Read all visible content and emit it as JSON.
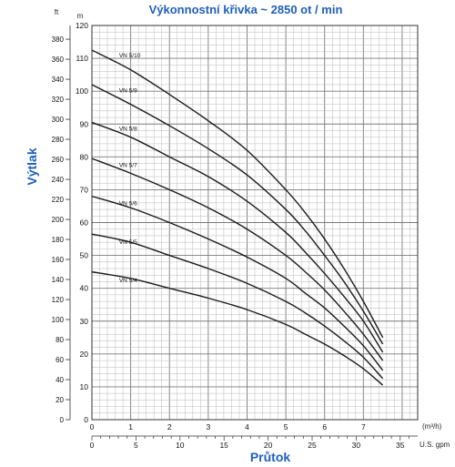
{
  "colors": {
    "accent": "#1f5fbf",
    "grid": "#b9b9b9",
    "grid_major": "#7a7a7a",
    "curve": "#1a1a1a"
  },
  "chart_data": {
    "type": "line",
    "title": "Výkonnostní křivka ~ 2850 ot / min",
    "xlabel": "Průtok",
    "ylabel": "Výtlak",
    "x_unit_primary": "(m³/h)",
    "x_unit_secondary": "U.S. gpm",
    "y_unit_primary": "m",
    "y_unit_secondary": "ft",
    "xlim": [
      0,
      8.4
    ],
    "ylim": [
      0,
      120
    ],
    "grid": true,
    "x_ticks_primary": [
      "0",
      "1",
      "2",
      "3",
      "4",
      "5",
      "6",
      "7"
    ],
    "x_ticks_secondary": [
      "0",
      "5",
      "10",
      "15",
      "20",
      "25",
      "30",
      "35"
    ],
    "y_ticks_primary": [
      "0",
      "10",
      "20",
      "30",
      "40",
      "50",
      "60",
      "70",
      "80",
      "90",
      "100",
      "110",
      "120"
    ],
    "y_ticks_secondary": [
      "0",
      "20",
      "40",
      "60",
      "80",
      "100",
      "120",
      "140",
      "160",
      "180",
      "200",
      "220",
      "240",
      "260",
      "280",
      "300",
      "320",
      "340",
      "360",
      "380"
    ],
    "series": [
      {
        "name": "VN 5/10",
        "x": [
          0,
          1,
          2,
          3,
          4,
          5,
          5.5,
          6,
          6.5,
          7,
          7.5
        ],
        "y": [
          112.5,
          106.5,
          99,
          91,
          82,
          70,
          63,
          55,
          46,
          36,
          25
        ]
      },
      {
        "name": "VN 5/9",
        "x": [
          0,
          1,
          2,
          3,
          4,
          5,
          5.5,
          6,
          6.5,
          7,
          7.5
        ],
        "y": [
          102,
          96,
          89.5,
          82.5,
          74.5,
          64,
          57.5,
          50,
          42,
          33,
          23
        ]
      },
      {
        "name": "VN 5/8",
        "x": [
          0,
          1,
          2,
          3,
          4,
          5,
          5.5,
          6,
          6.5,
          7,
          7.5
        ],
        "y": [
          90.5,
          86,
          80,
          74,
          66.5,
          57,
          51,
          44.5,
          37.5,
          30,
          20.5
        ]
      },
      {
        "name": "VN 5/7",
        "x": [
          0,
          1,
          2,
          3,
          4,
          5,
          5.5,
          6,
          6.5,
          7,
          7.5
        ],
        "y": [
          79.5,
          75,
          70,
          64.5,
          58,
          50,
          45,
          39.5,
          33,
          26,
          18
        ]
      },
      {
        "name": "VN 5/6",
        "x": [
          0,
          1,
          2,
          3,
          4,
          5,
          5.5,
          6,
          6.5,
          7,
          7.5
        ],
        "y": [
          68,
          64.5,
          60,
          55,
          49.5,
          43,
          38.5,
          34,
          28.5,
          22.5,
          15
        ]
      },
      {
        "name": "VN 5/5",
        "x": [
          0,
          1,
          2,
          3,
          4,
          5,
          5.5,
          6,
          6.5,
          7,
          7.5
        ],
        "y": [
          56.5,
          54,
          50,
          46,
          41.5,
          36,
          32.5,
          28.5,
          24,
          19,
          12.5
        ]
      },
      {
        "name": "VN 5/4",
        "x": [
          0,
          1,
          2,
          3,
          4,
          5,
          5.5,
          6,
          6.5,
          7,
          7.5
        ],
        "y": [
          45,
          43,
          40,
          37,
          33.5,
          29,
          26,
          23,
          19.5,
          15.5,
          10.5
        ]
      }
    ]
  }
}
